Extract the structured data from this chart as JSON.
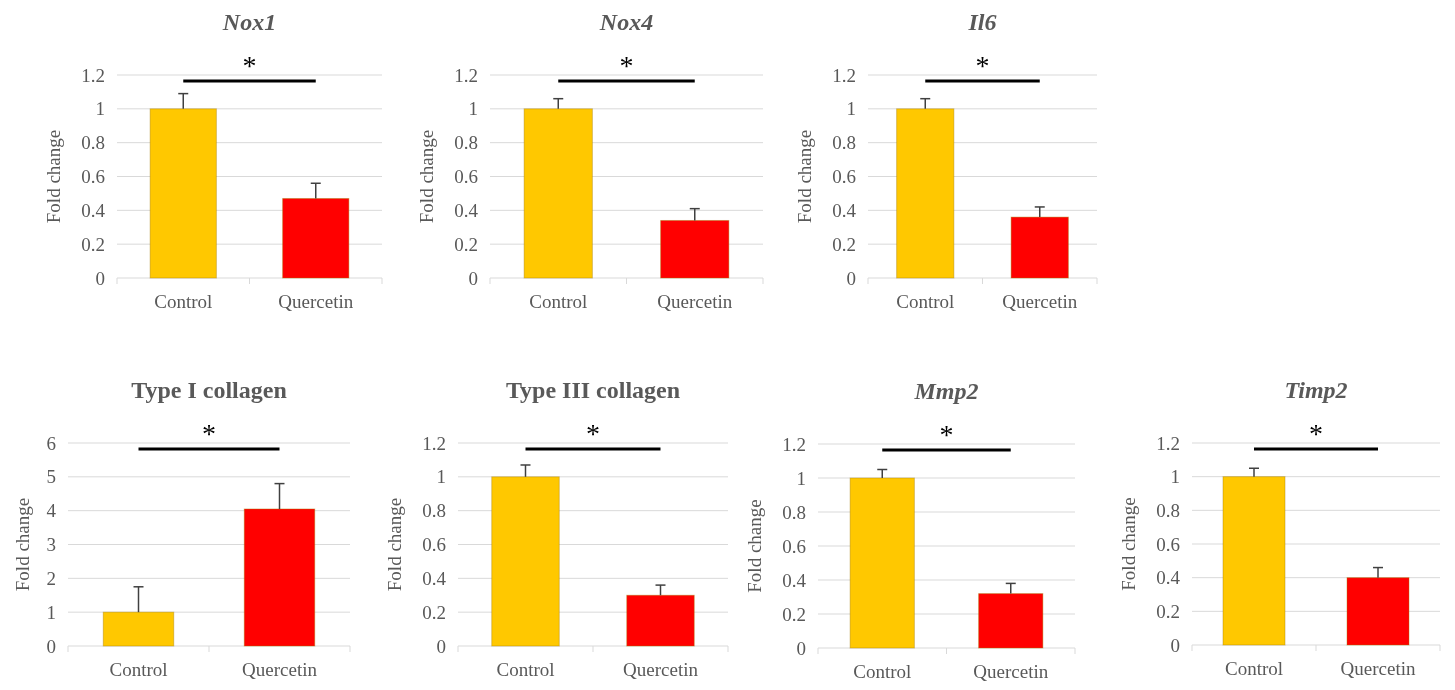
{
  "chart_data": [
    {
      "type": "bar",
      "title": "Nox1",
      "ylabel": "Fold change",
      "categories": [
        "Control",
        "Quercetin"
      ],
      "values": [
        1,
        0.47
      ],
      "colors": [
        "#ffc800",
        "#ff0000"
      ],
      "errors": [
        [
          1,
          1.09
        ],
        [
          0.47,
          0.56
        ]
      ],
      "ylim": [
        0,
        1.2
      ],
      "yticks": [
        0,
        0.2,
        0.4,
        0.6,
        0.8,
        1,
        1.2
      ],
      "grid": "y",
      "annotations": [
        "*"
      ]
    },
    {
      "type": "bar",
      "title": "Nox4",
      "ylabel": "Fold change",
      "categories": [
        "Control",
        "Quercetin"
      ],
      "values": [
        1,
        0.34
      ],
      "colors": [
        "#ffc800",
        "#ff0000"
      ],
      "errors": [
        [
          1,
          1.06
        ],
        [
          0.34,
          0.41
        ]
      ],
      "ylim": [
        0,
        1.2
      ],
      "yticks": [
        0,
        0.2,
        0.4,
        0.6,
        0.8,
        1,
        1.2
      ],
      "grid": "y",
      "annotations": [
        "*"
      ]
    },
    {
      "type": "bar",
      "title": "Il6",
      "ylabel": "Fold change",
      "categories": [
        "Control",
        "Quercetin"
      ],
      "values": [
        1,
        0.36
      ],
      "colors": [
        "#ffc800",
        "#ff0000"
      ],
      "errors": [
        [
          1,
          1.06
        ],
        [
          0.36,
          0.42
        ]
      ],
      "ylim": [
        0,
        1.2
      ],
      "yticks": [
        0,
        0.2,
        0.4,
        0.6,
        0.8,
        1,
        1.2
      ],
      "grid": "y",
      "annotations": [
        "*"
      ]
    },
    {
      "type": "bar",
      "title": "Type I collagen",
      "ylabel": "Fold change",
      "categories": [
        "Control",
        "Quercetin"
      ],
      "values": [
        1,
        4.05
      ],
      "colors": [
        "#ffc800",
        "#ff0000"
      ],
      "errors": [
        [
          1,
          1.75
        ],
        [
          4.05,
          4.8
        ]
      ],
      "ylim": [
        0,
        6
      ],
      "yticks": [
        0,
        1,
        2,
        3,
        4,
        5,
        6
      ],
      "grid": "y",
      "annotations": [
        "*"
      ]
    },
    {
      "type": "bar",
      "title": "Type III collagen",
      "ylabel": "Fold change",
      "categories": [
        "Control",
        "Quercetin"
      ],
      "values": [
        1,
        0.3
      ],
      "colors": [
        "#ffc800",
        "#ff0000"
      ],
      "errors": [
        [
          1,
          1.07
        ],
        [
          0.3,
          0.36
        ]
      ],
      "ylim": [
        0,
        1.2
      ],
      "yticks": [
        0,
        0.2,
        0.4,
        0.6,
        0.8,
        1,
        1.2
      ],
      "grid": "y",
      "annotations": [
        "*"
      ]
    },
    {
      "type": "bar",
      "title": "Mmp2",
      "ylabel": "Fold change",
      "categories": [
        "Control",
        "Quercetin"
      ],
      "values": [
        1,
        0.32
      ],
      "colors": [
        "#ffc800",
        "#ff0000"
      ],
      "errors": [
        [
          1,
          1.05
        ],
        [
          0.32,
          0.38
        ]
      ],
      "ylim": [
        0,
        1.2
      ],
      "yticks": [
        0,
        0.2,
        0.4,
        0.6,
        0.8,
        1,
        1.2
      ],
      "grid": "y",
      "annotations": [
        "*"
      ]
    },
    {
      "type": "bar",
      "title": "Timp2",
      "ylabel": "Fold change",
      "categories": [
        "Control",
        "Quercetin"
      ],
      "values": [
        1,
        0.4
      ],
      "colors": [
        "#ffc800",
        "#ff0000"
      ],
      "errors": [
        [
          1,
          1.05
        ],
        [
          0.4,
          0.46
        ]
      ],
      "ylim": [
        0,
        1.2
      ],
      "yticks": [
        0,
        0.2,
        0.4,
        0.6,
        0.8,
        1,
        1.2
      ],
      "grid": "y",
      "annotations": [
        "*"
      ]
    }
  ]
}
